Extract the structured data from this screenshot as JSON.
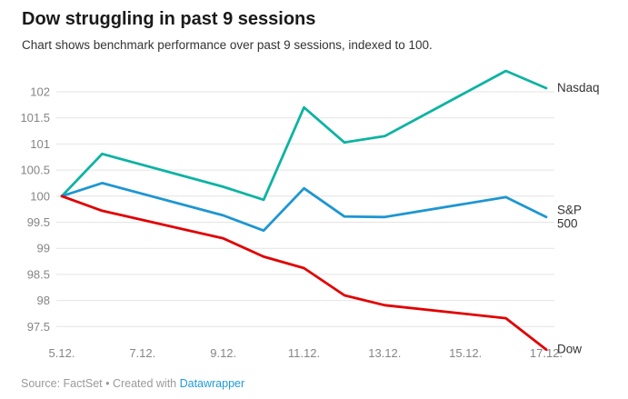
{
  "header": {
    "title": "Dow struggling in past 9 sessions",
    "subtitle": "Chart shows benchmark performance over past 9 sessions, indexed to 100."
  },
  "chart_data": {
    "type": "line",
    "title": "Dow struggling in past 9 sessions",
    "subtitle": "Chart shows benchmark performance over past 9 sessions, indexed to 100.",
    "indexed_to": 100,
    "x_axis": {
      "tick_labels": [
        "5.12.",
        "7.12.",
        "9.12.",
        "11.12.",
        "13.12.",
        "15.12.",
        "17.12."
      ],
      "tick_days": [
        0,
        2,
        4,
        6,
        8,
        10,
        12
      ]
    },
    "y_axis": {
      "tick_labels": [
        "97.5",
        "98",
        "98.5",
        "99",
        "99.5",
        "100",
        "100.5",
        "101",
        "101.5",
        "102"
      ],
      "ticks": [
        97.5,
        98,
        98.5,
        99,
        99.5,
        100,
        100.5,
        101,
        101.5,
        102
      ],
      "range": [
        97.0,
        102.5
      ],
      "grid": "horizontal-only"
    },
    "point_dates": [
      "5.12.",
      "6.12.",
      "9.12.",
      "10.12.",
      "11.12.",
      "12.12.",
      "13.12.",
      "16.12.",
      "17.12."
    ],
    "x_point_days": [
      0,
      1,
      4,
      5,
      6,
      7,
      8,
      11,
      12
    ],
    "legend_position": "end-of-line-labels",
    "series": [
      {
        "name": "Nasdaq",
        "label_lines": [
          "Nasdaq"
        ],
        "color": "#0db3a2",
        "values": [
          100,
          100.81,
          100.18,
          99.93,
          101.7,
          101.03,
          101.15,
          102.4,
          102.07
        ]
      },
      {
        "name": "S&P 500",
        "label_lines": [
          "S&P",
          "500"
        ],
        "color": "#1e96d2",
        "values": [
          100,
          100.25,
          99.63,
          99.34,
          100.15,
          99.61,
          99.6,
          99.98,
          99.6
        ]
      },
      {
        "name": "Dow",
        "label_lines": [
          "Dow"
        ],
        "color": "#e10000",
        "values": [
          100,
          99.72,
          99.19,
          98.84,
          98.62,
          98.1,
          97.91,
          97.66,
          97.06
        ]
      }
    ]
  },
  "footer": {
    "prefix": "Source: FactSet • Created with ",
    "link_label": "Datawrapper"
  },
  "colors": {
    "nasdaq_line": "#0db3a2",
    "sp500_line": "#1e96d2",
    "dow_line": "#e10000",
    "gridline": "#e4e4e4",
    "axis_tick_label": "#858585",
    "series_label": "#333333",
    "title_text": "#1a1a1a",
    "subtitle_text": "#333333",
    "footer_text": "#9a9a9a",
    "footer_link": "#1d9bd9",
    "background": "#ffffff"
  }
}
